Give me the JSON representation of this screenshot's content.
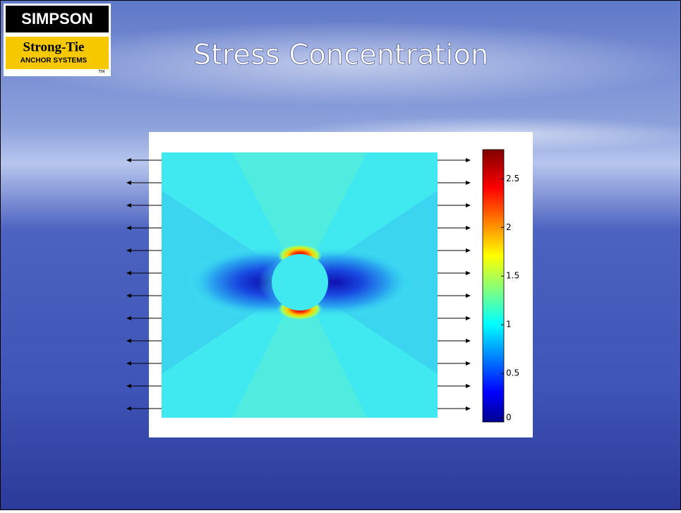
{
  "logo": {
    "top": "SIMPSON",
    "brand": "Strong-Tie",
    "sub": "ANCHOR SYSTEMS",
    "tm": "TM"
  },
  "title": "Stress Concentration",
  "colorbar": {
    "lim": [
      0,
      2.8
    ],
    "ticks": [
      0,
      0.5,
      1,
      1.5,
      2,
      2.5
    ]
  }
}
